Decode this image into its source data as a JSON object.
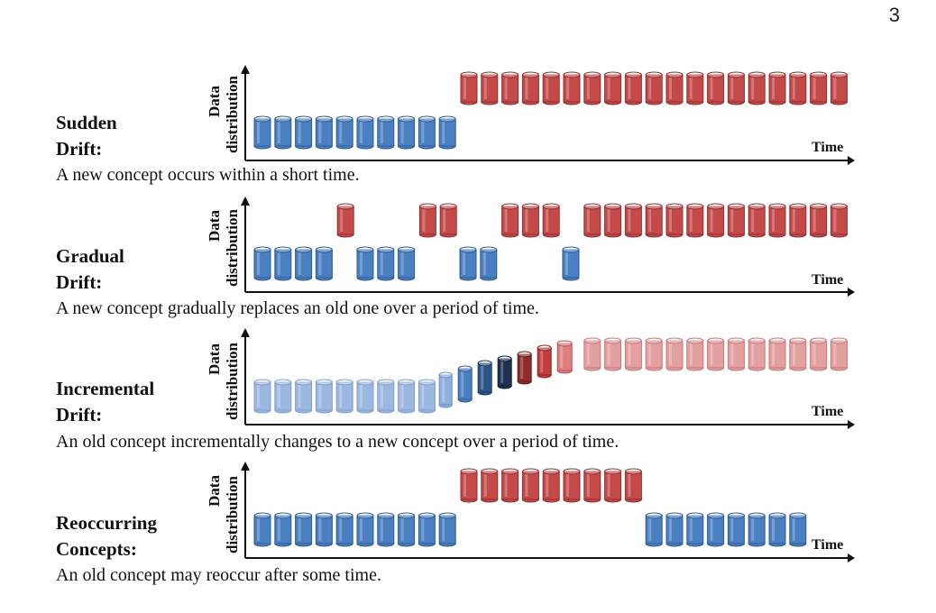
{
  "page_number": "3",
  "axis": {
    "y_label_line1": "Data",
    "y_label_line2": "distribution",
    "x_label": "Time"
  },
  "colors": {
    "blue": "#4a7fc1",
    "blue_edge": "#2e5d96",
    "red": "#c44a4a",
    "red_edge": "#922f2f",
    "light_blue": "#9db8e0",
    "light_red": "#e3a0a0"
  },
  "panels": [
    {
      "title_line1": "Sudden",
      "title_line2": "Drift:",
      "description": "A new concept occurs within a short time."
    },
    {
      "title_line1": "Gradual",
      "title_line2": "Drift:",
      "description": "A new concept gradually replaces an old one over a period of time."
    },
    {
      "title_line1": "Incremental",
      "title_line2": "Drift:",
      "description": "An old concept incrementally changes to a new concept over a period of time."
    },
    {
      "title_line1": "Reoccurring",
      "title_line2": "Concepts:",
      "description": "An old concept may reoccur after some time."
    }
  ]
}
